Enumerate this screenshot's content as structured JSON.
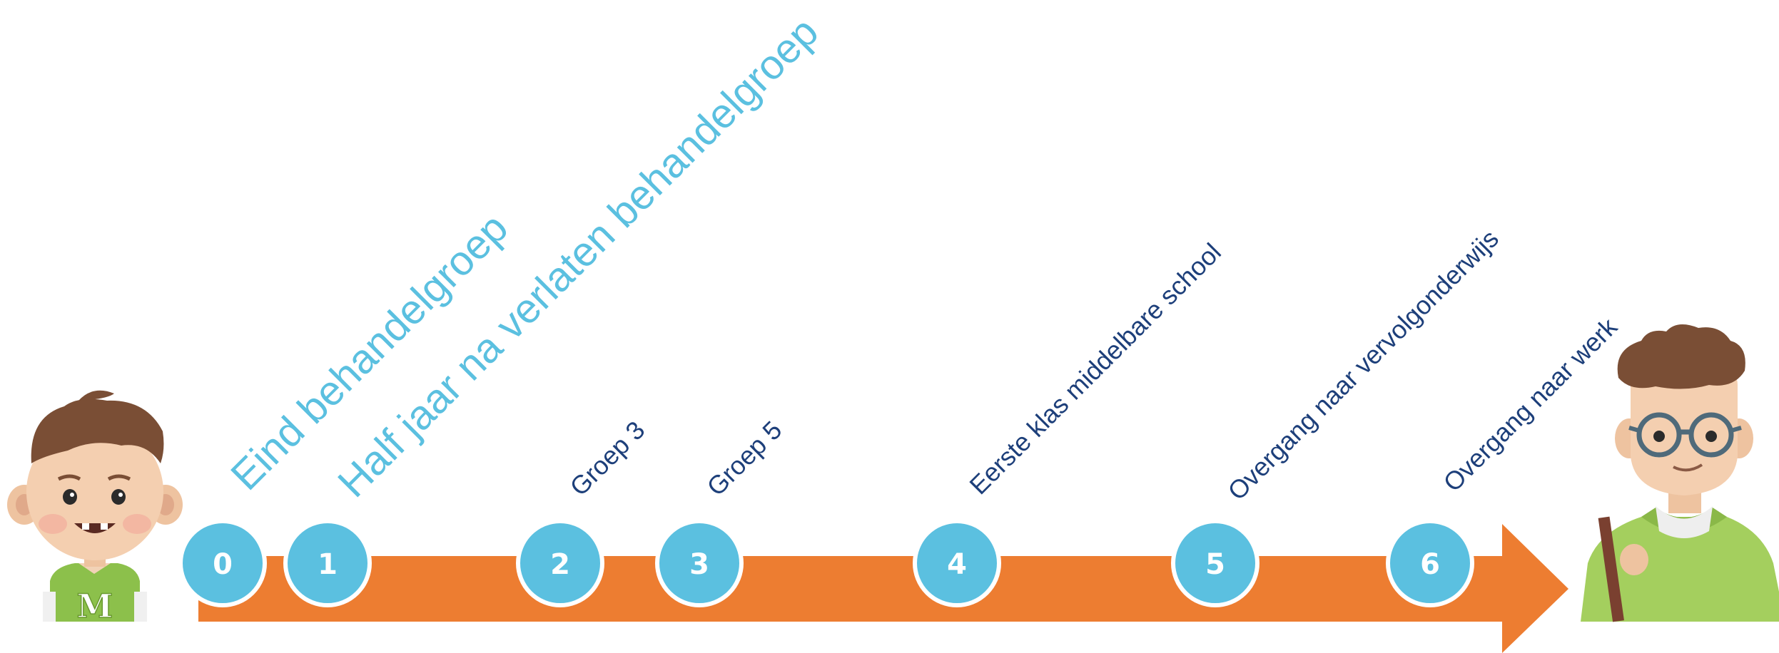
{
  "timeline": {
    "arrow_color": "#ed7d31",
    "circle_color": "#5bc0e0",
    "milestones": [
      {
        "number": "0",
        "label": "Eind behandelgroep",
        "style": "big"
      },
      {
        "number": "1",
        "label": "Half jaar na verlaten behandelgroep",
        "style": "big"
      },
      {
        "number": "2",
        "label": "Groep 3",
        "style": "small"
      },
      {
        "number": "3",
        "label": "Groep 5",
        "style": "small"
      },
      {
        "number": "4",
        "label": "Eerste klas middelbare school",
        "style": "small"
      },
      {
        "number": "5",
        "label": "Overgang naar vervolgonderwijs",
        "style": "small"
      },
      {
        "number": "6",
        "label": "Overgang naar werk",
        "style": "small"
      }
    ]
  },
  "child_figure": {
    "icon": "child-avatar-icon",
    "shirt_letter": "M"
  },
  "adult_figure": {
    "icon": "young-adult-avatar-icon"
  }
}
